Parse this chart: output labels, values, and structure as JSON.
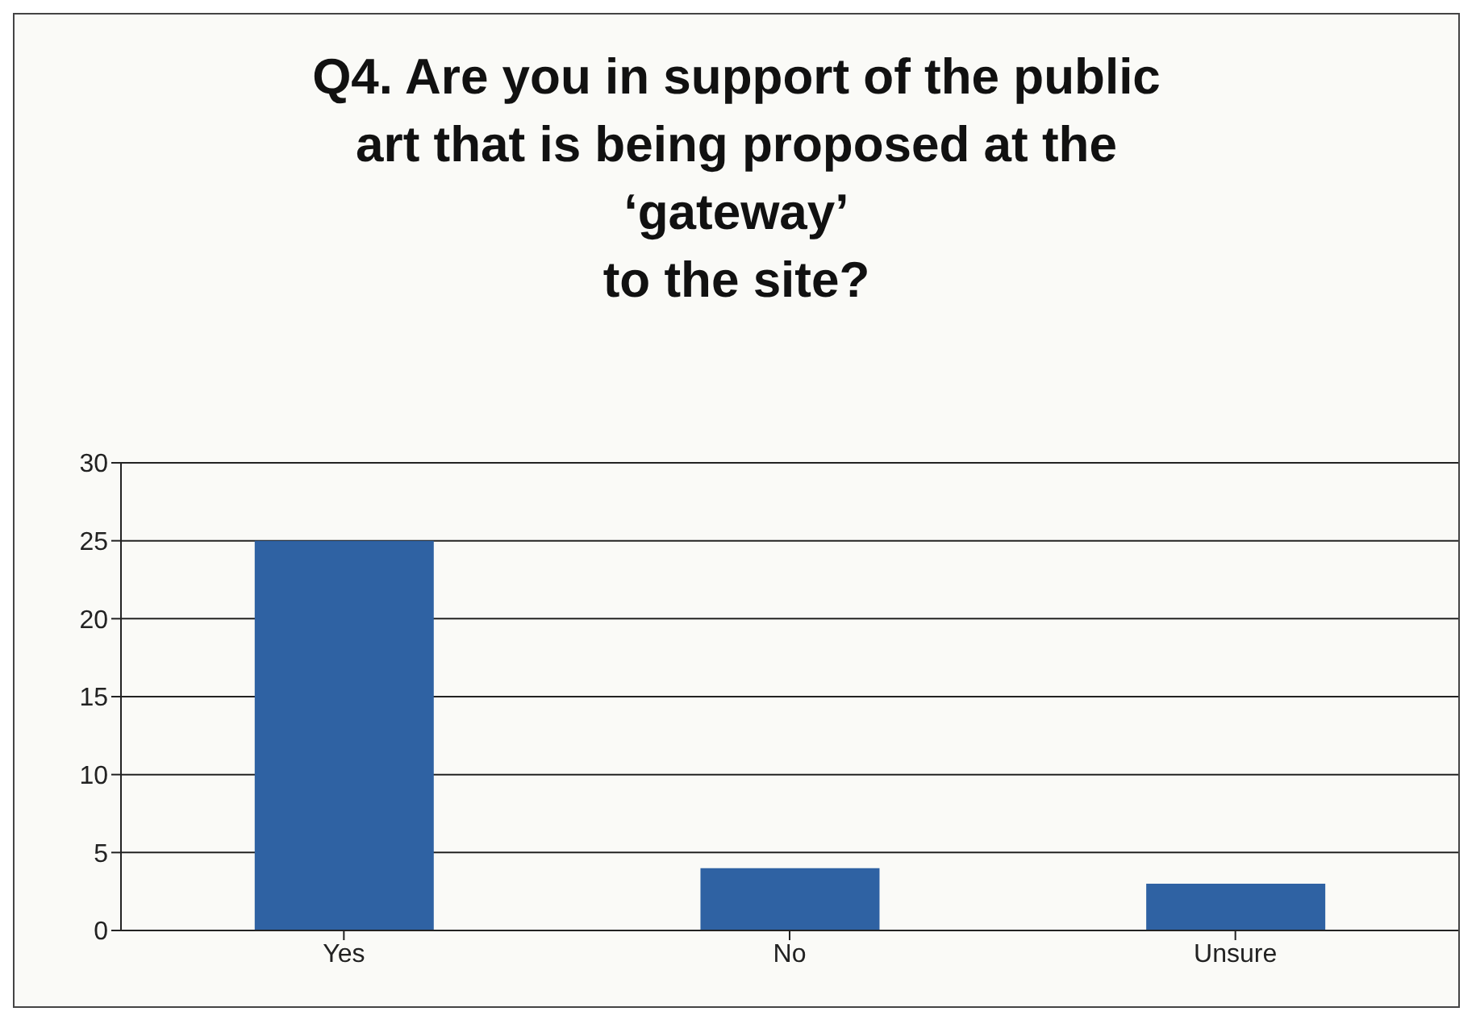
{
  "chart_data": {
    "type": "bar",
    "title": "Q4. Are you in support of the public\nart that is being proposed at the\n‘gateway’\nto the site?",
    "categories": [
      "Yes",
      "No",
      "Unsure"
    ],
    "values": [
      25,
      4,
      3
    ],
    "color": "#2f62a3",
    "ylim": [
      0,
      30
    ],
    "yticks": [
      0,
      5,
      10,
      15,
      20,
      25,
      30
    ],
    "grid": "y",
    "legend": false
  }
}
